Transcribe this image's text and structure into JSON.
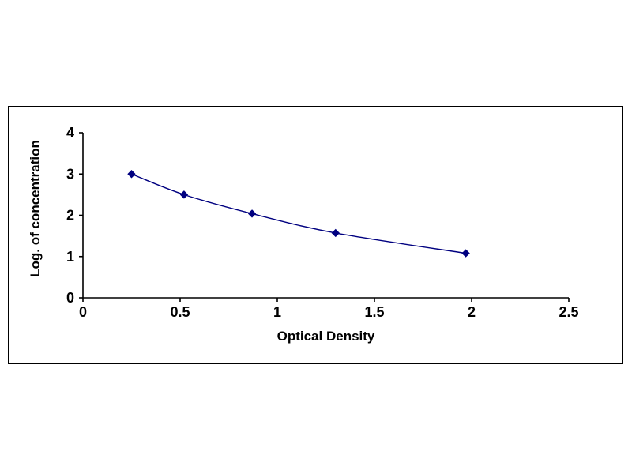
{
  "chart": {
    "xlabel": "Optical Density",
    "ylabel": "Log. of concentration"
  },
  "chart_data": {
    "type": "line",
    "title": "",
    "xlabel": "Optical Density",
    "ylabel": "Log. of concentration",
    "xlim": [
      0,
      2.5
    ],
    "ylim": [
      0,
      4
    ],
    "x_ticks": [
      0,
      0.5,
      1,
      1.5,
      2,
      2.5
    ],
    "y_ticks": [
      0,
      1,
      2,
      3,
      4
    ],
    "grid": false,
    "legend": "none",
    "marker": "diamond",
    "line_color": "#000080",
    "marker_color": "#000080",
    "axis_color": "#000000",
    "series": [
      {
        "name": "standard-curve",
        "x": [
          0.25,
          0.52,
          0.87,
          1.3,
          1.97
        ],
        "y": [
          3.0,
          2.5,
          2.04,
          1.57,
          1.08
        ]
      }
    ]
  }
}
